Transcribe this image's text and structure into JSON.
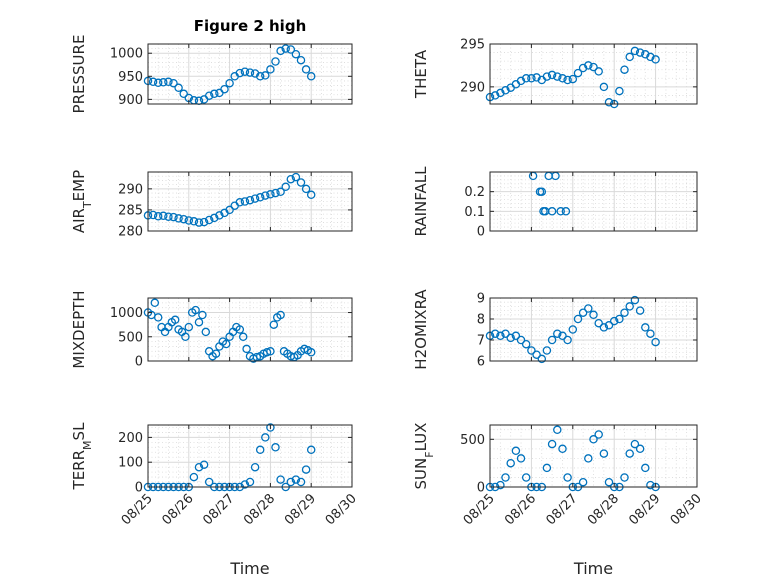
{
  "figure": {
    "title": "Figure 2 high",
    "xlabel": "Time",
    "marker_color": "#0072bd"
  },
  "chart_data": [
    {
      "id": "pressure",
      "type": "scatter",
      "title": "Figure 2 high",
      "ylabel": "PRESSURE",
      "xlim": [
        "08/25",
        "08/30"
      ],
      "ylim": [
        890,
        1020
      ],
      "yticks": [
        900,
        950,
        1000
      ],
      "xticks": [
        "08/25",
        "08/26",
        "08/27",
        "08/28",
        "08/29",
        "08/30"
      ],
      "show_xticklabels": false,
      "series": [
        {
          "x": [
            "08/25 00:00",
            "08/25 03:00",
            "08/25 06:00",
            "08/25 09:00",
            "08/25 12:00",
            "08/25 15:00",
            "08/25 18:00",
            "08/25 21:00",
            "08/26 00:00",
            "08/26 03:00",
            "08/26 06:00",
            "08/26 09:00",
            "08/26 12:00",
            "08/26 15:00",
            "08/26 18:00",
            "08/26 21:00",
            "08/27 00:00",
            "08/27 03:00",
            "08/27 06:00",
            "08/27 09:00",
            "08/27 12:00",
            "08/27 15:00",
            "08/27 18:00",
            "08/27 21:00",
            "08/28 00:00",
            "08/28 03:00",
            "08/28 06:00",
            "08/28 09:00",
            "08/28 12:00",
            "08/28 15:00",
            "08/28 18:00",
            "08/28 21:00",
            "08/29 00:00"
          ],
          "y": [
            940,
            938,
            936,
            937,
            938,
            935,
            925,
            912,
            903,
            898,
            897,
            900,
            908,
            912,
            914,
            922,
            935,
            950,
            957,
            960,
            958,
            956,
            950,
            952,
            965,
            982,
            1005,
            1010,
            1008,
            998,
            985,
            965,
            950
          ]
        }
      ]
    },
    {
      "id": "theta",
      "type": "scatter",
      "ylabel": "THETA",
      "xlim": [
        "08/25",
        "08/30"
      ],
      "ylim": [
        288,
        295
      ],
      "yticks": [
        290,
        295
      ],
      "xticks": [
        "08/25",
        "08/26",
        "08/27",
        "08/28",
        "08/29",
        "08/30"
      ],
      "show_xticklabels": false,
      "series": [
        {
          "x": [
            "08/25 00:00",
            "08/25 03:00",
            "08/25 06:00",
            "08/25 09:00",
            "08/25 12:00",
            "08/25 15:00",
            "08/25 18:00",
            "08/25 21:00",
            "08/26 00:00",
            "08/26 03:00",
            "08/26 06:00",
            "08/26 09:00",
            "08/26 12:00",
            "08/26 15:00",
            "08/26 18:00",
            "08/26 21:00",
            "08/27 00:00",
            "08/27 03:00",
            "08/27 06:00",
            "08/27 09:00",
            "08/27 12:00",
            "08/27 15:00",
            "08/27 18:00",
            "08/27 21:00",
            "08/28 00:00",
            "08/28 03:00",
            "08/28 06:00",
            "08/28 09:00",
            "08/28 12:00",
            "08/28 15:00",
            "08/28 18:00",
            "08/28 21:00",
            "08/29 00:00"
          ],
          "y": [
            288.8,
            289.0,
            289.3,
            289.6,
            289.9,
            290.3,
            290.7,
            291.0,
            291.0,
            291.1,
            290.8,
            291.2,
            291.4,
            291.2,
            291.0,
            290.8,
            290.9,
            291.6,
            292.2,
            292.5,
            292.3,
            291.8,
            290.0,
            288.2,
            288.0,
            289.5,
            292.0,
            293.5,
            294.2,
            294.0,
            293.8,
            293.5,
            293.2
          ]
        }
      ]
    },
    {
      "id": "air_temp",
      "type": "scatter",
      "ylabel": "AIR_TEMP",
      "xlim": [
        "08/25",
        "08/30"
      ],
      "ylim": [
        280,
        294
      ],
      "yticks": [
        280,
        285,
        290
      ],
      "xticks": [
        "08/25",
        "08/26",
        "08/27",
        "08/28",
        "08/29",
        "08/30"
      ],
      "show_xticklabels": false,
      "series": [
        {
          "x": [
            "08/25 00:00",
            "08/25 03:00",
            "08/25 06:00",
            "08/25 09:00",
            "08/25 12:00",
            "08/25 15:00",
            "08/25 18:00",
            "08/25 21:00",
            "08/26 00:00",
            "08/26 03:00",
            "08/26 06:00",
            "08/26 09:00",
            "08/26 12:00",
            "08/26 15:00",
            "08/26 18:00",
            "08/26 21:00",
            "08/27 00:00",
            "08/27 03:00",
            "08/27 06:00",
            "08/27 09:00",
            "08/27 12:00",
            "08/27 15:00",
            "08/27 18:00",
            "08/27 21:00",
            "08/28 00:00",
            "08/28 03:00",
            "08/28 06:00",
            "08/28 09:00",
            "08/28 12:00",
            "08/28 15:00",
            "08/28 18:00",
            "08/28 21:00",
            "08/29 00:00"
          ],
          "y": [
            283.7,
            283.8,
            283.5,
            283.6,
            283.4,
            283.3,
            283.0,
            282.8,
            282.5,
            282.3,
            282.0,
            282.1,
            282.6,
            283.1,
            283.7,
            284.3,
            285.0,
            286.0,
            286.8,
            287.0,
            287.3,
            287.7,
            288.0,
            288.4,
            288.7,
            289.0,
            289.3,
            290.5,
            292.3,
            292.8,
            291.5,
            290.0,
            288.6
          ]
        }
      ]
    },
    {
      "id": "rainfall",
      "type": "scatter",
      "ylabel": "RAINFALL",
      "xlim": [
        "08/25",
        "08/30"
      ],
      "ylim": [
        0,
        0.3
      ],
      "yticks": [
        0,
        0.1,
        0.2
      ],
      "xticks": [
        "08/25",
        "08/26",
        "08/27",
        "08/28",
        "08/29",
        "08/30"
      ],
      "show_xticklabels": false,
      "series": [
        {
          "x": [
            "08/26 01:00",
            "08/26 05:00",
            "08/26 06:00",
            "08/26 07:00",
            "08/26 08:00",
            "08/26 10:00",
            "08/26 12:00",
            "08/26 14:00",
            "08/26 17:00",
            "08/26 20:00"
          ],
          "y": [
            0.28,
            0.2,
            0.2,
            0.1,
            0.1,
            0.28,
            0.1,
            0.28,
            0.1,
            0.1
          ]
        }
      ]
    },
    {
      "id": "mixdepth",
      "type": "scatter",
      "ylabel": "MIXDEPTH",
      "xlim": [
        "08/25",
        "08/30"
      ],
      "ylim": [
        0,
        1300
      ],
      "yticks": [
        0,
        500,
        1000
      ],
      "xticks": [
        "08/25",
        "08/26",
        "08/27",
        "08/28",
        "08/29",
        "08/30"
      ],
      "show_xticklabels": false,
      "series": [
        {
          "x": [
            "08/25 00:00",
            "08/25 02:00",
            "08/25 04:00",
            "08/25 06:00",
            "08/25 08:00",
            "08/25 10:00",
            "08/25 12:00",
            "08/25 14:00",
            "08/25 16:00",
            "08/25 18:00",
            "08/25 20:00",
            "08/25 22:00",
            "08/26 00:00",
            "08/26 02:00",
            "08/26 04:00",
            "08/26 06:00",
            "08/26 08:00",
            "08/26 10:00",
            "08/26 12:00",
            "08/26 14:00",
            "08/26 16:00",
            "08/26 18:00",
            "08/26 20:00",
            "08/26 22:00",
            "08/27 00:00",
            "08/27 02:00",
            "08/27 04:00",
            "08/27 06:00",
            "08/27 08:00",
            "08/27 10:00",
            "08/27 12:00",
            "08/27 14:00",
            "08/27 16:00",
            "08/27 18:00",
            "08/27 20:00",
            "08/27 22:00",
            "08/28 00:00",
            "08/28 02:00",
            "08/28 04:00",
            "08/28 06:00",
            "08/28 08:00",
            "08/28 10:00",
            "08/28 12:00",
            "08/28 14:00",
            "08/28 16:00",
            "08/28 18:00",
            "08/28 20:00",
            "08/28 22:00",
            "08/29 00:00"
          ],
          "y": [
            1000,
            950,
            1200,
            900,
            700,
            600,
            700,
            800,
            850,
            650,
            600,
            500,
            700,
            1000,
            1050,
            800,
            950,
            600,
            200,
            100,
            150,
            300,
            400,
            350,
            500,
            600,
            700,
            650,
            500,
            250,
            100,
            50,
            80,
            100,
            150,
            180,
            200,
            750,
            900,
            950,
            200,
            150,
            100,
            80,
            120,
            200,
            250,
            220,
            180
          ]
        }
      ]
    },
    {
      "id": "h2omixra",
      "type": "scatter",
      "ylabel": "H2OMIXRA",
      "xlim": [
        "08/25",
        "08/30"
      ],
      "ylim": [
        6,
        9
      ],
      "yticks": [
        6,
        7,
        8,
        9
      ],
      "xticks": [
        "08/25",
        "08/26",
        "08/27",
        "08/28",
        "08/29",
        "08/30"
      ],
      "show_xticklabels": false,
      "series": [
        {
          "x": [
            "08/25 00:00",
            "08/25 03:00",
            "08/25 06:00",
            "08/25 09:00",
            "08/25 12:00",
            "08/25 15:00",
            "08/25 18:00",
            "08/25 21:00",
            "08/26 00:00",
            "08/26 03:00",
            "08/26 06:00",
            "08/26 09:00",
            "08/26 12:00",
            "08/26 15:00",
            "08/26 18:00",
            "08/26 21:00",
            "08/27 00:00",
            "08/27 03:00",
            "08/27 06:00",
            "08/27 09:00",
            "08/27 12:00",
            "08/27 15:00",
            "08/27 18:00",
            "08/27 21:00",
            "08/28 00:00",
            "08/28 03:00",
            "08/28 06:00",
            "08/28 09:00",
            "08/28 12:00",
            "08/28 15:00",
            "08/28 18:00",
            "08/28 21:00",
            "08/29 00:00"
          ],
          "y": [
            7.2,
            7.3,
            7.2,
            7.3,
            7.1,
            7.2,
            7.0,
            6.8,
            6.5,
            6.3,
            6.1,
            6.5,
            7.0,
            7.3,
            7.2,
            7.0,
            7.5,
            8.0,
            8.3,
            8.5,
            8.2,
            7.8,
            7.6,
            7.7,
            7.9,
            8.0,
            8.3,
            8.6,
            8.9,
            8.4,
            7.6,
            7.3,
            6.9
          ]
        }
      ]
    },
    {
      "id": "terr_msl",
      "type": "scatter",
      "ylabel": "TERR_MSL",
      "xlim": [
        "08/25",
        "08/30"
      ],
      "ylim": [
        0,
        250
      ],
      "yticks": [
        0,
        100,
        200
      ],
      "xticks": [
        "08/25",
        "08/26",
        "08/27",
        "08/28",
        "08/29",
        "08/30"
      ],
      "show_xticklabels": true,
      "series": [
        {
          "x": [
            "08/25 00:00",
            "08/25 03:00",
            "08/25 06:00",
            "08/25 09:00",
            "08/25 12:00",
            "08/25 15:00",
            "08/25 18:00",
            "08/25 21:00",
            "08/26 00:00",
            "08/26 03:00",
            "08/26 06:00",
            "08/26 09:00",
            "08/26 12:00",
            "08/26 15:00",
            "08/26 18:00",
            "08/26 21:00",
            "08/27 00:00",
            "08/27 03:00",
            "08/27 06:00",
            "08/27 09:00",
            "08/27 12:00",
            "08/27 15:00",
            "08/27 18:00",
            "08/27 21:00",
            "08/28 00:00",
            "08/28 03:00",
            "08/28 06:00",
            "08/28 09:00",
            "08/28 12:00",
            "08/28 15:00",
            "08/28 18:00",
            "08/28 21:00",
            "08/29 00:00"
          ],
          "y": [
            0,
            0,
            0,
            0,
            0,
            0,
            0,
            0,
            0,
            40,
            80,
            90,
            20,
            0,
            0,
            0,
            0,
            0,
            0,
            10,
            20,
            80,
            150,
            200,
            240,
            160,
            30,
            0,
            20,
            30,
            20,
            70,
            150
          ]
        }
      ]
    },
    {
      "id": "sun_flux",
      "type": "scatter",
      "ylabel": "SUN_FLUX",
      "xlim": [
        "08/25",
        "08/30"
      ],
      "ylim": [
        0,
        650
      ],
      "yticks": [
        0,
        500
      ],
      "xticks": [
        "08/25",
        "08/26",
        "08/27",
        "08/28",
        "08/29",
        "08/30"
      ],
      "show_xticklabels": true,
      "series": [
        {
          "x": [
            "08/25 00:00",
            "08/25 03:00",
            "08/25 06:00",
            "08/25 09:00",
            "08/25 12:00",
            "08/25 15:00",
            "08/25 18:00",
            "08/25 21:00",
            "08/26 00:00",
            "08/26 03:00",
            "08/26 06:00",
            "08/26 09:00",
            "08/26 12:00",
            "08/26 15:00",
            "08/26 18:00",
            "08/26 21:00",
            "08/27 00:00",
            "08/27 03:00",
            "08/27 06:00",
            "08/27 09:00",
            "08/27 12:00",
            "08/27 15:00",
            "08/27 18:00",
            "08/27 21:00",
            "08/28 00:00",
            "08/28 03:00",
            "08/28 06:00",
            "08/28 09:00",
            "08/28 12:00",
            "08/28 15:00",
            "08/28 18:00",
            "08/28 21:00",
            "08/29 00:00"
          ],
          "y": [
            0,
            0,
            20,
            100,
            250,
            380,
            300,
            100,
            0,
            0,
            0,
            200,
            450,
            600,
            400,
            100,
            0,
            0,
            50,
            300,
            500,
            550,
            350,
            50,
            0,
            0,
            100,
            350,
            450,
            400,
            200,
            20,
            0
          ]
        }
      ]
    }
  ]
}
